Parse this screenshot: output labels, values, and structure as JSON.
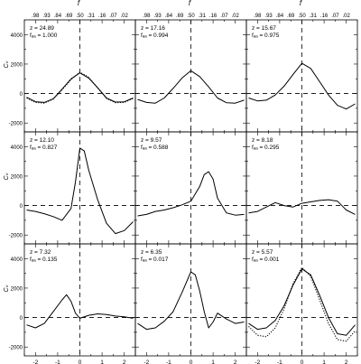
{
  "figure": {
    "top_axis_label": "f",
    "top_tick_labels": [
      ".98",
      ".93",
      ".84",
      ".69",
      ".50",
      ".31",
      ".16",
      ".07",
      ".02"
    ],
    "y_axis_label": "Cₙ",
    "x_axis_label": "ν",
    "x_tick_labels": [
      "-2",
      "-1",
      "0",
      "1",
      "2"
    ],
    "y_tick_labels": [
      "-2000",
      "0",
      "2000",
      "4000"
    ]
  },
  "chart_data": [
    {
      "type": "line",
      "panel": 1,
      "annotation": [
        "z = 24.89",
        "fₐₐ = 1.000"
      ],
      "xlim": [
        -2.5,
        2.5
      ],
      "ylim": [
        -2600,
        5000
      ],
      "x": [
        -2.4,
        -2.0,
        -1.6,
        -1.2,
        -0.8,
        -0.4,
        0.0,
        0.4,
        0.8,
        1.2,
        1.6,
        2.0,
        2.4
      ],
      "series": [
        {
          "style": "solid",
          "values": [
            -250,
            -550,
            -600,
            -350,
            300,
            1000,
            1400,
            1050,
            400,
            -300,
            -580,
            -560,
            -300
          ]
        },
        {
          "style": "dotted",
          "values": [
            -300,
            -600,
            -650,
            -380,
            250,
            950,
            1450,
            1100,
            380,
            -330,
            -620,
            -600,
            -330
          ]
        }
      ]
    },
    {
      "type": "line",
      "panel": 2,
      "annotation": [
        "z = 17.16",
        "fₐₐ = 0.994"
      ],
      "xlim": [
        -2.5,
        2.5
      ],
      "ylim": [
        -2600,
        5000
      ],
      "x": [
        -2.4,
        -2.0,
        -1.6,
        -1.2,
        -0.8,
        -0.4,
        0.0,
        0.4,
        0.8,
        1.2,
        1.6,
        2.0,
        2.4
      ],
      "series": [
        {
          "style": "solid",
          "values": [
            -400,
            -600,
            -650,
            -300,
            350,
            1050,
            1550,
            1150,
            450,
            -300,
            -620,
            -650,
            -450
          ]
        }
      ]
    },
    {
      "type": "line",
      "panel": 3,
      "annotation": [
        "z = 15.67",
        "fₐₐ = 0.975"
      ],
      "xlim": [
        -2.5,
        2.5
      ],
      "ylim": [
        -2600,
        5000
      ],
      "x": [
        -2.4,
        -2.0,
        -1.6,
        -1.2,
        -0.8,
        -0.4,
        0.0,
        0.4,
        0.8,
        1.2,
        1.6,
        2.0,
        2.4
      ],
      "series": [
        {
          "style": "solid",
          "values": [
            -300,
            -500,
            -450,
            -100,
            500,
            1300,
            2050,
            1700,
            800,
            -100,
            -800,
            -1050,
            -700
          ]
        }
      ]
    },
    {
      "type": "line",
      "panel": 4,
      "annotation": [
        "z = 12.10",
        "fₐₐ = 0.827"
      ],
      "xlim": [
        -2.5,
        2.5
      ],
      "ylim": [
        -2600,
        5000
      ],
      "x": [
        -2.4,
        -2.0,
        -1.6,
        -1.2,
        -0.8,
        -0.4,
        -0.2,
        0.0,
        0.2,
        0.4,
        0.8,
        1.2,
        1.6,
        2.0,
        2.4
      ],
      "series": [
        {
          "style": "solid",
          "values": [
            -300,
            -400,
            -550,
            -750,
            -1000,
            -200,
            1600,
            3900,
            3700,
            2400,
            400,
            -1200,
            -1900,
            -1700,
            -1100
          ]
        }
      ]
    },
    {
      "type": "line",
      "panel": 5,
      "annotation": [
        "z = 9.57",
        "fₐₐ = 0.588"
      ],
      "xlim": [
        -2.5,
        2.5
      ],
      "ylim": [
        -2600,
        5000
      ],
      "x": [
        -2.4,
        -2.0,
        -1.6,
        -1.2,
        -0.8,
        -0.4,
        0.0,
        0.4,
        0.6,
        0.8,
        1.0,
        1.2,
        1.6,
        2.0,
        2.4
      ],
      "series": [
        {
          "style": "solid",
          "values": [
            -700,
            -600,
            -400,
            -300,
            -150,
            50,
            300,
            1300,
            2100,
            2300,
            1800,
            500,
            -500,
            -650,
            -600
          ]
        }
      ]
    },
    {
      "type": "line",
      "panel": 6,
      "annotation": [
        "z = 8.18",
        "fₐₐ = 0.295"
      ],
      "xlim": [
        -2.5,
        2.5
      ],
      "ylim": [
        -2600,
        5000
      ],
      "x": [
        -2.4,
        -2.0,
        -1.6,
        -1.2,
        -0.8,
        -0.4,
        0.0,
        0.4,
        0.8,
        1.2,
        1.6,
        2.0,
        2.4
      ],
      "series": [
        {
          "style": "solid",
          "values": [
            -500,
            -400,
            -100,
            200,
            0,
            -100,
            150,
            250,
            350,
            400,
            300,
            -300,
            -600
          ]
        }
      ]
    },
    {
      "type": "line",
      "panel": 7,
      "annotation": [
        "z = 7.32",
        "fₐₐ = 0.135"
      ],
      "xlim": [
        -2.5,
        2.5
      ],
      "ylim": [
        -2600,
        5000
      ],
      "x": [
        -2.4,
        -2.0,
        -1.6,
        -1.2,
        -0.8,
        -0.6,
        -0.4,
        -0.2,
        0.0,
        0.4,
        0.8,
        1.2,
        1.6,
        2.0,
        2.4
      ],
      "series": [
        {
          "style": "solid",
          "values": [
            -500,
            -700,
            -400,
            400,
            1200,
            1550,
            1100,
            300,
            -50,
            150,
            250,
            200,
            100,
            50,
            -50
          ]
        }
      ]
    },
    {
      "type": "line",
      "panel": 8,
      "annotation": [
        "z = 6.35",
        "fₐₐ = 0.017"
      ],
      "xlim": [
        -2.5,
        2.5
      ],
      "ylim": [
        -2600,
        5000
      ],
      "x": [
        -2.4,
        -2.0,
        -1.6,
        -1.2,
        -0.8,
        -0.4,
        0.0,
        0.2,
        0.4,
        0.6,
        0.8,
        1.0,
        1.2,
        1.6,
        2.0,
        2.4
      ],
      "series": [
        {
          "style": "solid",
          "values": [
            -400,
            -800,
            -700,
            -250,
            400,
            1700,
            3100,
            2900,
            1800,
            400,
            -700,
            -300,
            300,
            -100,
            -400,
            -300
          ]
        }
      ]
    },
    {
      "type": "line",
      "panel": 9,
      "annotation": [
        "z = 5.57",
        "fₐₐ = 0.001"
      ],
      "xlim": [
        -2.5,
        2.5
      ],
      "ylim": [
        -2600,
        5000
      ],
      "x": [
        -2.4,
        -2.0,
        -1.6,
        -1.2,
        -0.8,
        -0.4,
        0.0,
        0.4,
        0.8,
        1.2,
        1.6,
        2.0,
        2.4
      ],
      "series": [
        {
          "style": "solid",
          "values": [
            -400,
            -800,
            -700,
            -200,
            800,
            2200,
            3300,
            2900,
            1500,
            0,
            -1100,
            -1200,
            -500
          ]
        },
        {
          "style": "dotted",
          "values": [
            -600,
            -1200,
            -1300,
            -700,
            600,
            2300,
            3400,
            2800,
            1200,
            -400,
            -1500,
            -1600,
            -900
          ]
        }
      ]
    }
  ]
}
